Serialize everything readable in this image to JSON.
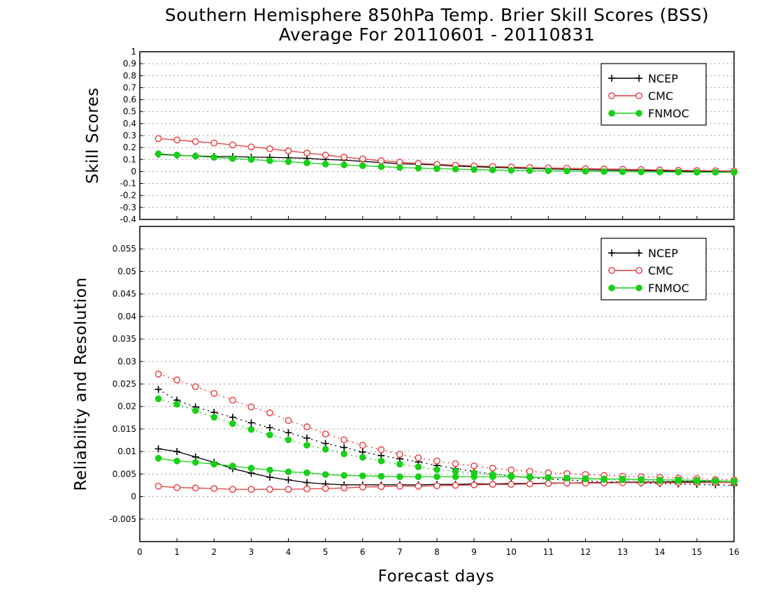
{
  "chart_title": {
    "line1": "Southern Hemisphere 850hPa Temp. Brier Skill Scores (BSS)",
    "line2": "Average For 20110601 - 20110831"
  },
  "xlabel": "Forecast days",
  "colors": {
    "NCEP": "#000000",
    "CMC": "#e8393a",
    "FNMOC": "#18d018",
    "grid": "#9a9a9a",
    "frame": "#000000"
  },
  "chart_data": [
    {
      "type": "line",
      "panel": "top",
      "ylabel": "Skill Scores",
      "xlim": [
        0,
        16
      ],
      "ylim": [
        -0.4,
        1
      ],
      "yticks": [
        "1",
        "0.9",
        "0.8",
        "0.7",
        "0.6",
        "0.5",
        "0.4",
        "0.3",
        "0.2",
        "0.1",
        "0",
        "-0.1",
        "-0.2",
        "-0.3",
        "-0.4"
      ],
      "xticks": [
        "0",
        "1",
        "2",
        "3",
        "4",
        "5",
        "6",
        "7",
        "8",
        "9",
        "10",
        "11",
        "12",
        "13",
        "14",
        "15",
        "16"
      ],
      "grid": true,
      "legend_position": "top-right",
      "x": [
        0.5,
        1,
        1.5,
        2,
        2.5,
        3,
        3.5,
        4,
        4.5,
        5,
        5.5,
        6,
        6.5,
        7,
        7.5,
        8,
        8.5,
        9,
        9.5,
        10,
        10.5,
        11,
        11.5,
        12,
        12.5,
        13,
        13.5,
        14,
        14.5,
        15,
        15.5,
        16
      ],
      "series": [
        {
          "name": "NCEP",
          "marker": "plus",
          "style": "solid",
          "values": [
            0.143,
            0.135,
            0.13,
            0.125,
            0.125,
            0.12,
            0.118,
            0.115,
            0.11,
            0.1,
            0.095,
            0.085,
            0.075,
            0.065,
            0.06,
            0.055,
            0.045,
            0.04,
            0.035,
            0.03,
            0.025,
            0.022,
            0.018,
            0.015,
            0.012,
            0.01,
            0.008,
            0.005,
            0.003,
            0.0,
            -0.003,
            -0.005
          ]
        },
        {
          "name": "CMC",
          "marker": "open-circle",
          "style": "solid",
          "values": [
            0.275,
            0.263,
            0.25,
            0.238,
            0.222,
            0.205,
            0.19,
            0.172,
            0.155,
            0.137,
            0.12,
            0.105,
            0.09,
            0.078,
            0.068,
            0.06,
            0.052,
            0.047,
            0.042,
            0.037,
            0.033,
            0.03,
            0.027,
            0.024,
            0.021,
            0.019,
            0.016,
            0.013,
            0.01,
            0.008,
            0.006,
            0.004
          ]
        },
        {
          "name": "FNMOC",
          "marker": "filled-circle",
          "style": "solid",
          "values": [
            0.148,
            0.138,
            0.128,
            0.118,
            0.108,
            0.1,
            0.09,
            0.082,
            0.072,
            0.062,
            0.055,
            0.048,
            0.04,
            0.033,
            0.028,
            0.024,
            0.02,
            0.016,
            0.013,
            0.01,
            0.008,
            0.006,
            0.004,
            0.002,
            0.0,
            -0.002,
            -0.003,
            -0.004,
            -0.005,
            -0.006,
            -0.007,
            -0.007
          ]
        }
      ]
    },
    {
      "type": "line",
      "panel": "bottom",
      "ylabel": "Reliability and Resolution",
      "xlim": [
        0,
        16
      ],
      "ylim": [
        -0.01,
        0.06
      ],
      "yticks": [
        "0.055",
        "0.05",
        "0.045",
        "0.04",
        "0.035",
        "0.03",
        "0.025",
        "0.02",
        "0.015",
        "0.01",
        "0.005",
        "0",
        "-0.005"
      ],
      "xticks": [
        "0",
        "1",
        "2",
        "3",
        "4",
        "5",
        "6",
        "7",
        "8",
        "9",
        "10",
        "11",
        "12",
        "13",
        "14",
        "15",
        "16"
      ],
      "grid": true,
      "legend_position": "top-right",
      "x": [
        0.5,
        1,
        1.5,
        2,
        2.5,
        3,
        3.5,
        4,
        4.5,
        5,
        5.5,
        6,
        6.5,
        7,
        7.5,
        8,
        8.5,
        9,
        9.5,
        10,
        10.5,
        11,
        11.5,
        12,
        12.5,
        13,
        13.5,
        14,
        14.5,
        15,
        15.5,
        16
      ],
      "series": [
        {
          "name": "NCEP",
          "marker": "plus",
          "style": "solid",
          "measure": "reliability",
          "values": [
            0.0106,
            0.01,
            0.0088,
            0.0076,
            0.0062,
            0.0052,
            0.0043,
            0.0037,
            0.0031,
            0.0028,
            0.0026,
            0.0026,
            0.0026,
            0.0026,
            0.0026,
            0.0027,
            0.0027,
            0.0028,
            0.0028,
            0.0029,
            0.0029,
            0.003,
            0.003,
            0.0031,
            0.0031,
            0.0032,
            0.0032,
            0.0032,
            0.0033,
            0.0033,
            0.0034,
            0.0034
          ]
        },
        {
          "name": "NCEP",
          "marker": "plus",
          "style": "dotted",
          "measure": "resolution",
          "values": [
            0.0238,
            0.0214,
            0.0199,
            0.0187,
            0.0176,
            0.0164,
            0.0153,
            0.0142,
            0.013,
            0.0118,
            0.0109,
            0.0099,
            0.0091,
            0.0084,
            0.0077,
            0.0069,
            0.0062,
            0.0056,
            0.005,
            0.0046,
            0.0042,
            0.0039,
            0.0037,
            0.0035,
            0.0033,
            0.0032,
            0.003,
            0.0029,
            0.0028,
            0.0027,
            0.0026,
            0.0025
          ]
        },
        {
          "name": "CMC",
          "marker": "open-circle",
          "style": "solid",
          "measure": "reliability",
          "values": [
            0.0023,
            0.002,
            0.0019,
            0.0018,
            0.0016,
            0.0016,
            0.0016,
            0.0016,
            0.0017,
            0.0018,
            0.0019,
            0.0021,
            0.0022,
            0.0023,
            0.0023,
            0.0024,
            0.0025,
            0.0026,
            0.0027,
            0.0027,
            0.0028,
            0.0029,
            0.003,
            0.003,
            0.003,
            0.0031,
            0.0031,
            0.0031,
            0.0031,
            0.0031,
            0.0031,
            0.0031
          ]
        },
        {
          "name": "CMC",
          "marker": "open-circle",
          "style": "dotted",
          "measure": "resolution",
          "values": [
            0.0272,
            0.0259,
            0.0244,
            0.0229,
            0.0214,
            0.0199,
            0.0186,
            0.0169,
            0.0155,
            0.0139,
            0.0126,
            0.0114,
            0.0104,
            0.0094,
            0.0086,
            0.0079,
            0.0073,
            0.0068,
            0.0063,
            0.0059,
            0.0056,
            0.0053,
            0.0051,
            0.0049,
            0.0047,
            0.0045,
            0.0044,
            0.0043,
            0.0041,
            0.004,
            0.0038,
            0.0037
          ]
        },
        {
          "name": "FNMOC",
          "marker": "filled-circle",
          "style": "solid",
          "measure": "reliability",
          "values": [
            0.0085,
            0.0079,
            0.0076,
            0.0072,
            0.0068,
            0.0063,
            0.0059,
            0.0055,
            0.0053,
            0.0049,
            0.0047,
            0.0046,
            0.0045,
            0.0044,
            0.0044,
            0.0044,
            0.0044,
            0.0044,
            0.0044,
            0.0044,
            0.0043,
            0.0042,
            0.0041,
            0.004,
            0.0039,
            0.0039,
            0.0038,
            0.0037,
            0.0037,
            0.0036,
            0.0035,
            0.0034
          ]
        },
        {
          "name": "FNMOC",
          "marker": "filled-circle",
          "style": "dotted",
          "measure": "resolution",
          "values": [
            0.0217,
            0.0205,
            0.0191,
            0.0176,
            0.0162,
            0.0149,
            0.0137,
            0.0126,
            0.0114,
            0.0105,
            0.0095,
            0.0087,
            0.0079,
            0.0072,
            0.0066,
            0.006,
            0.0056,
            0.0052,
            0.0049,
            0.0046,
            0.0044,
            0.0042,
            0.0041,
            0.0039,
            0.0038,
            0.0037,
            0.0036,
            0.0035,
            0.0035,
            0.0034,
            0.0034,
            0.0033
          ]
        }
      ]
    }
  ]
}
